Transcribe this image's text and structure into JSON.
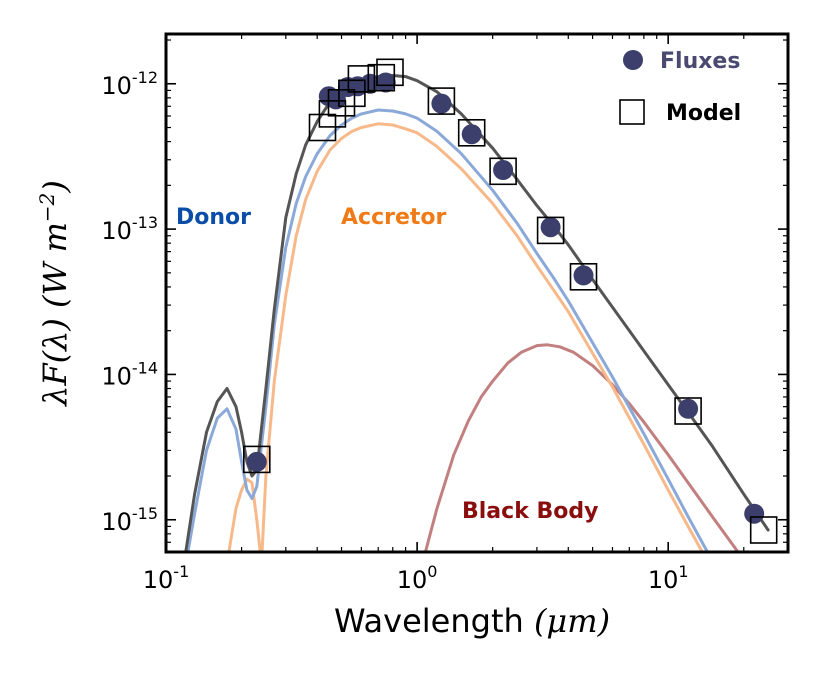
{
  "colors": {
    "model": "#555555",
    "donor_line": "#8aa9d8",
    "accretor_line": "#f7b98a",
    "blackbody_line": "#c27f7f",
    "flux_marker": "#3c3f6b",
    "donor_text": "#0a4da8",
    "accretor_text": "#f07a16",
    "blackbody_text": "#8b0e0e",
    "legend_flux_text": "#4a4a70",
    "legend_model_text": "#000000"
  },
  "chart_data": {
    "type": "line",
    "title": "",
    "xlabel_text": "Wavelength",
    "xlabel_unit": "(μm)",
    "ylabel_text": "λF(λ)  (W m",
    "ylabel_exp": "−2",
    "ylabel_close": ")",
    "x_scale": "log",
    "y_scale": "log",
    "xlim": [
      0.1,
      30
    ],
    "ylim": [
      6e-16,
      2.2e-12
    ],
    "x_ticks": [
      {
        "value": 0.1,
        "base": "10",
        "exp": "-1"
      },
      {
        "value": 1,
        "base": "10",
        "exp": "0"
      },
      {
        "value": 10,
        "base": "10",
        "exp": "1"
      }
    ],
    "y_ticks": [
      {
        "value": 1e-15,
        "base": "10",
        "exp": "-15"
      },
      {
        "value": 1e-14,
        "base": "10",
        "exp": "-14"
      },
      {
        "value": 1e-13,
        "base": "10",
        "exp": "-13"
      },
      {
        "value": 1e-12,
        "base": "10",
        "exp": "-12"
      }
    ],
    "grid": false,
    "legend_position": "top-right",
    "legend": [
      {
        "label": "Fluxes",
        "marker": "circle"
      },
      {
        "label": "Model",
        "marker": "square"
      }
    ],
    "annotations": [
      {
        "text": "Donor",
        "series": "donor"
      },
      {
        "text": "Accretor",
        "series": "accretor"
      },
      {
        "text": "Black Body",
        "series": "blackbody"
      }
    ],
    "series": [
      {
        "key": "model",
        "x": [
          0.118,
          0.13,
          0.145,
          0.16,
          0.175,
          0.19,
          0.2,
          0.21,
          0.22,
          0.23,
          0.25,
          0.27,
          0.3,
          0.33,
          0.36,
          0.4,
          0.45,
          0.5,
          0.55,
          0.6,
          0.7,
          0.8,
          0.9,
          1.0,
          1.2,
          1.5,
          2.0,
          2.5,
          3.0,
          3.5,
          4.0,
          5.0,
          6.0,
          8.0,
          10.0,
          12.0,
          15.0,
          20.0,
          25.0
        ],
        "y": [
          5e-16,
          1.5e-15,
          4e-15,
          6.5e-15,
          8e-15,
          6e-15,
          4e-15,
          2.5e-15,
          2e-15,
          2.2e-15,
          8e-15,
          2.8e-14,
          1.2e-13,
          2.4e-13,
          3.8e-13,
          5.5e-13,
          7.5e-13,
          8.8e-13,
          9.8e-13,
          1.05e-12,
          1.12e-12,
          1.14e-12,
          1.12e-12,
          1.05e-12,
          8.8e-13,
          6.2e-13,
          3.6e-13,
          2.2e-13,
          1.45e-13,
          1.05e-13,
          7.8e-14,
          4.5e-14,
          2.9e-14,
          1.45e-14,
          8.5e-15,
          5.5e-15,
          3.2e-15,
          1.5e-15,
          8.5e-16
        ]
      },
      {
        "key": "donor",
        "x": [
          0.12,
          0.13,
          0.145,
          0.16,
          0.175,
          0.19,
          0.2,
          0.21,
          0.22,
          0.23,
          0.25,
          0.27,
          0.3,
          0.33,
          0.36,
          0.4,
          0.45,
          0.5,
          0.55,
          0.6,
          0.7,
          0.8,
          0.9,
          1.0,
          1.2,
          1.5,
          2.0,
          2.5,
          3.0,
          3.5,
          4.0,
          5.0,
          6.0,
          8.0,
          10.0,
          12.0,
          15.0
        ],
        "y": [
          5e-16,
          1.1e-15,
          3e-15,
          5e-15,
          5.8e-15,
          4.2e-15,
          2.5e-15,
          1.6e-15,
          1.4e-15,
          1.7e-15,
          6e-15,
          2.2e-14,
          7.5e-14,
          1.5e-13,
          2.3e-13,
          3.3e-13,
          4.4e-13,
          5.2e-13,
          5.8e-13,
          6.2e-13,
          6.6e-13,
          6.5e-13,
          6.2e-13,
          5.8e-13,
          4.7e-13,
          3.3e-13,
          1.85e-13,
          1.1e-13,
          6.8e-14,
          4.6e-14,
          3.2e-14,
          1.65e-14,
          9.6e-15,
          3.9e-15,
          1.9e-15,
          1.05e-15,
          5.2e-16
        ]
      },
      {
        "key": "accretor",
        "x": [
          0.175,
          0.19,
          0.2,
          0.21,
          0.22,
          0.23,
          0.24,
          0.25,
          0.27,
          0.3,
          0.33,
          0.36,
          0.4,
          0.45,
          0.5,
          0.55,
          0.6,
          0.7,
          0.8,
          0.9,
          1.0,
          1.2,
          1.5,
          2.0,
          2.5,
          3.0,
          3.5,
          4.0,
          5.0,
          6.0,
          8.0,
          10.0,
          12.0,
          15.0
        ],
        "y": [
          5e-16,
          1.2e-15,
          1.6e-15,
          1.9e-15,
          1.8e-15,
          1e-15,
          5e-16,
          2e-15,
          9e-15,
          3.5e-14,
          9e-14,
          1.6e-13,
          2.5e-13,
          3.5e-13,
          4.2e-13,
          4.7e-13,
          5e-13,
          5.3e-13,
          5.2e-13,
          4.9e-13,
          4.6e-13,
          3.7e-13,
          2.6e-13,
          1.5e-13,
          9e-14,
          5.6e-14,
          3.8e-14,
          2.7e-14,
          1.4e-14,
          8.2e-15,
          3.3e-15,
          1.6e-15,
          9e-16,
          4.5e-16
        ]
      },
      {
        "key": "blackbody",
        "x": [
          1.05,
          1.2,
          1.4,
          1.6,
          1.8,
          2.0,
          2.3,
          2.6,
          3.0,
          3.3,
          3.7,
          4.2,
          5.0,
          6.0,
          7.0,
          8.0,
          10.0,
          12.0,
          15.0,
          18.0,
          22.0
        ],
        "y": [
          5e-16,
          1.2e-15,
          2.8e-15,
          4.8e-15,
          7e-15,
          9e-15,
          1.2e-14,
          1.42e-14,
          1.58e-14,
          1.6e-14,
          1.55e-14,
          1.42e-14,
          1.15e-14,
          8.5e-15,
          6.3e-15,
          4.7e-15,
          2.8e-15,
          1.8e-15,
          1.05e-15,
          6.8e-16,
          4.2e-16
        ]
      }
    ],
    "fluxes": {
      "x": [
        0.23,
        0.445,
        0.475,
        0.53,
        0.58,
        0.65,
        0.75,
        1.25,
        1.65,
        2.2,
        3.4,
        4.6,
        12.0,
        22.0
      ],
      "y": [
        2.5e-15,
        8.2e-13,
        7.8e-13,
        9.5e-13,
        9.6e-13,
        1e-12,
        1.02e-12,
        7.3e-13,
        4.5e-13,
        2.55e-13,
        1.03e-13,
        4.8e-14,
        5.8e-15,
        1.1e-15
      ]
    },
    "model_points": {
      "x": [
        0.23,
        0.42,
        0.46,
        0.5,
        0.55,
        0.6,
        0.72,
        0.78,
        1.25,
        1.65,
        2.2,
        3.4,
        4.6,
        12.0,
        24.0
      ],
      "y": [
        2.6e-15,
        5e-13,
        6.2e-13,
        7.4e-13,
        8.6e-13,
        1.08e-12,
        1.1e-12,
        1.2e-12,
        7.6e-13,
        4.6e-13,
        2.5e-13,
        9.8e-14,
        4.7e-14,
        5.6e-15,
        8.5e-16
      ]
    }
  }
}
